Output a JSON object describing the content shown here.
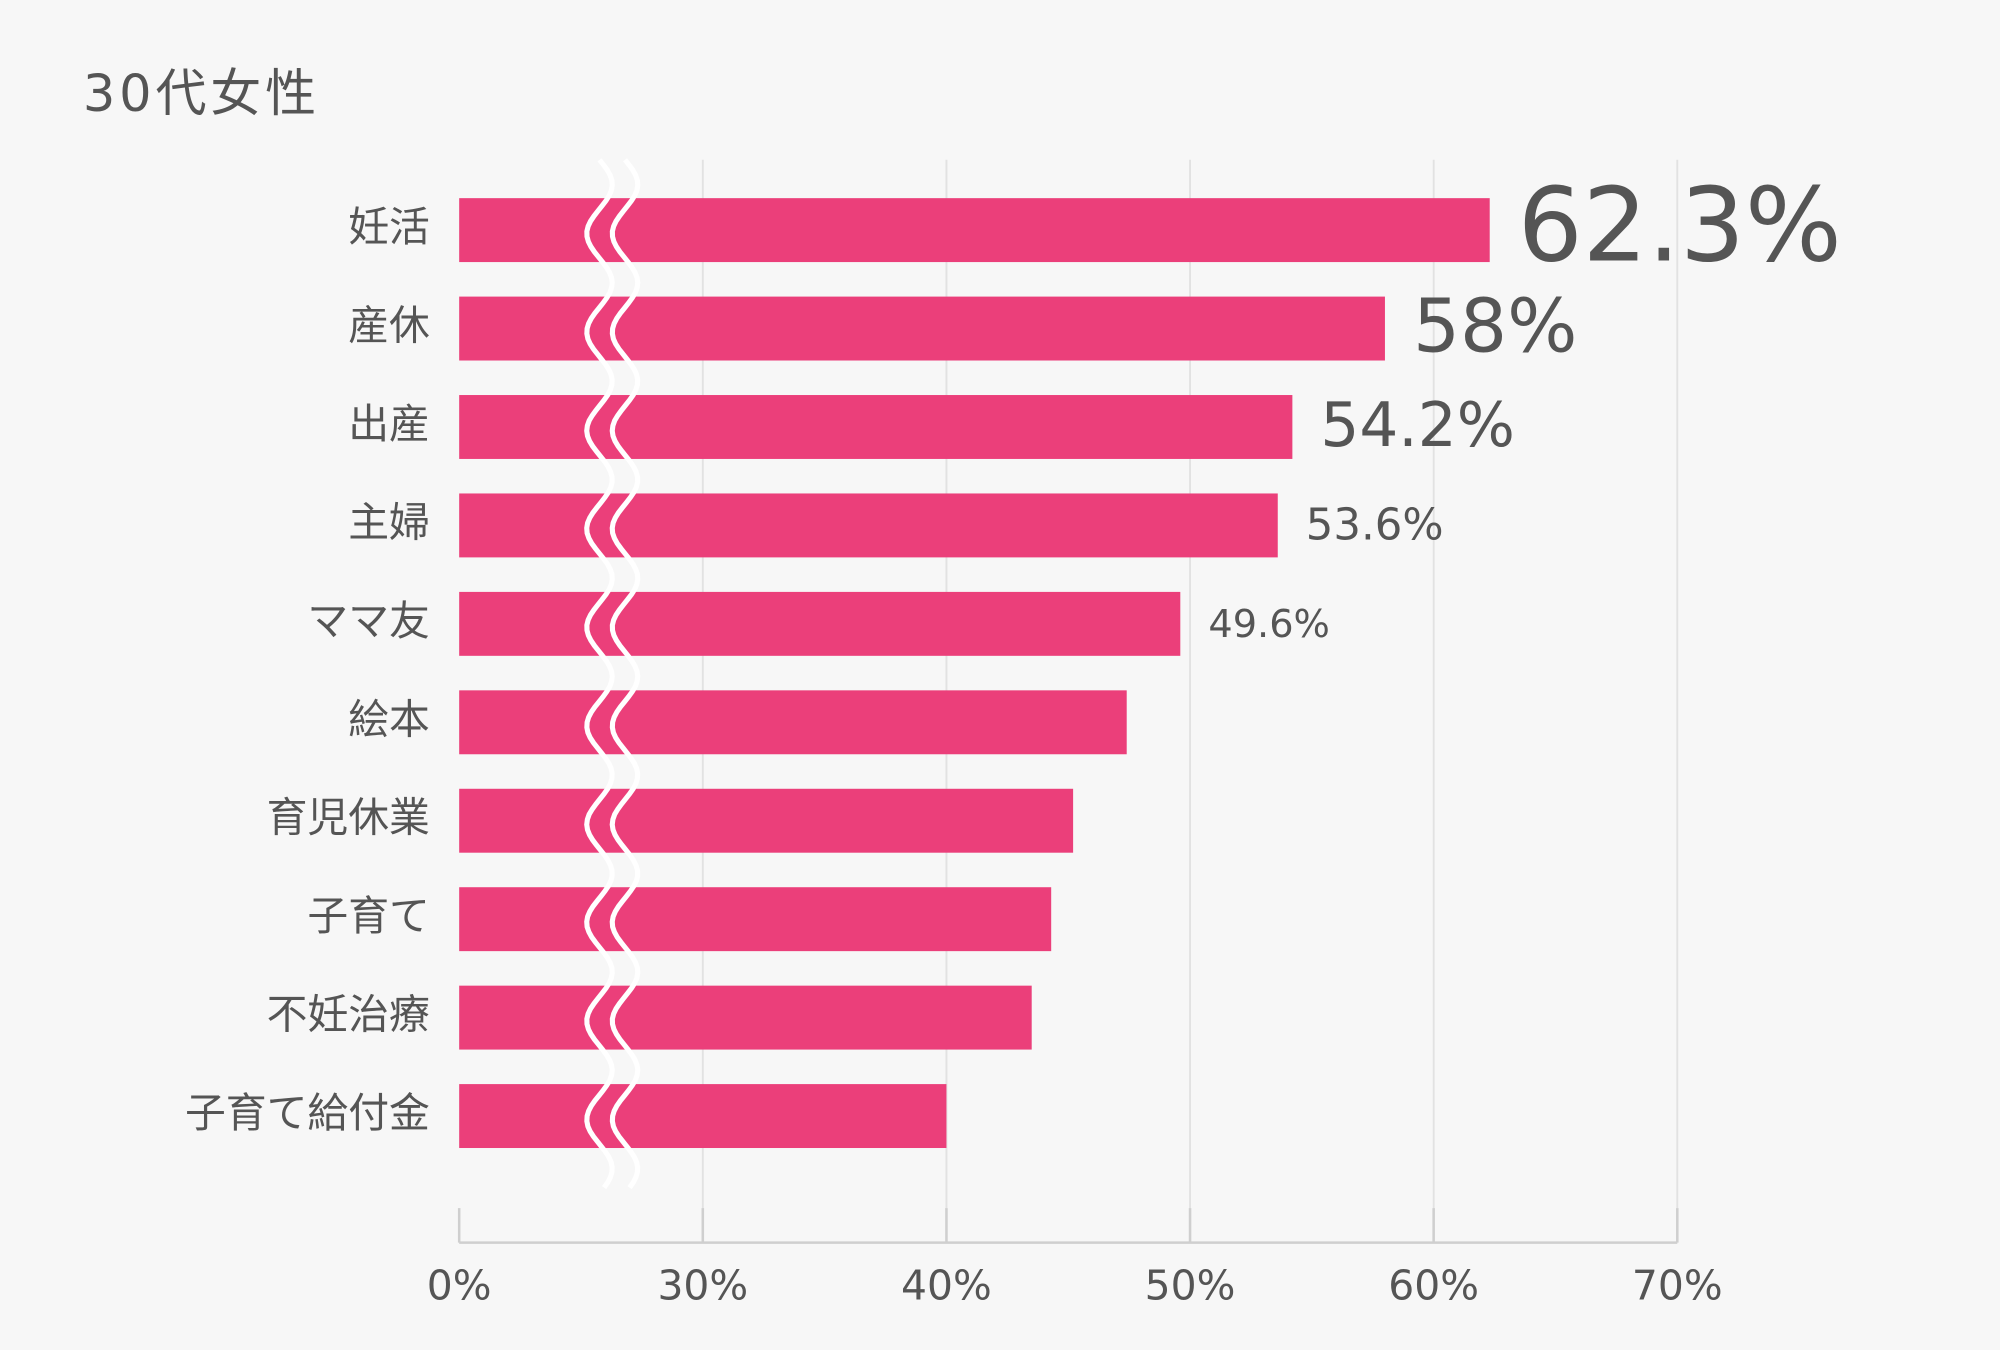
{
  "chart_data": {
    "type": "bar",
    "orientation": "horizontal",
    "title": "30代女性",
    "categories": [
      "妊活",
      "産休",
      "出産",
      "主婦",
      "ママ友",
      "絵本",
      "育児休業",
      "子育て",
      "不妊治療",
      "子育て給付金"
    ],
    "values": [
      62.3,
      58,
      54.2,
      53.6,
      49.6,
      47.4,
      45.2,
      44.3,
      43.5,
      40
    ],
    "value_labels": [
      "62.3%",
      "58%",
      "54.2%",
      "53.6%",
      "49.6%",
      null,
      null,
      null,
      null,
      null
    ],
    "color": "#eb3f7a",
    "xlim": [
      0,
      70
    ],
    "xticks": [
      {
        "value": 0,
        "label": "0%"
      },
      {
        "value": 30,
        "label": "30%"
      },
      {
        "value": 40,
        "label": "40%"
      },
      {
        "value": 50,
        "label": "50%"
      },
      {
        "value": 60,
        "label": "60%"
      },
      {
        "value": 70,
        "label": "70%"
      }
    ],
    "axis_break": true,
    "grid": true
  }
}
